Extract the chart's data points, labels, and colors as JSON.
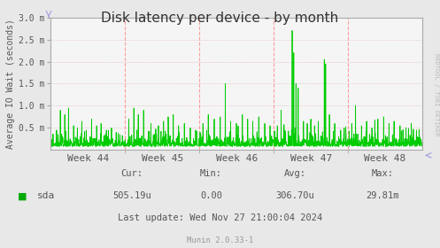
{
  "title": "Disk latency per device - by month",
  "ylabel": "Average IO Wait (seconds)",
  "background_color": "#e8e8e8",
  "plot_bg_color": "#f5f5f5",
  "grid_color_h": "#cccccc",
  "grid_color_v": "#ff8888",
  "line_color": "#00cc00",
  "ylim": [
    0,
    0.003
  ],
  "yticks": [
    0.0005,
    0.001,
    0.0015,
    0.002,
    0.0025,
    0.003
  ],
  "ytick_labels": [
    "0.5 m",
    "1.0 m",
    "1.5 m",
    "2.0 m",
    "2.5 m",
    "3.0 m"
  ],
  "week_labels": [
    "Week 44",
    "Week 45",
    "Week 46",
    "Week 47",
    "Week 48"
  ],
  "legend_label": "sda",
  "legend_color": "#00aa00",
  "cur_label": "Cur:",
  "cur_value": "505.19u",
  "min_label": "Min:",
  "min_value": "0.00",
  "avg_label": "Avg:",
  "avg_value": "306.70u",
  "max_label": "Max:",
  "max_value": "29.81m",
  "last_update": "Last update: Wed Nov 27 21:00:04 2024",
  "munin_version": "Munin 2.0.33-1",
  "rrdtool_label": "RRDTOOL / TOBI OETIKER",
  "title_color": "#333333",
  "text_color": "#555555",
  "label_color": "#999999",
  "arrow_color": "#aaaadd",
  "spine_color": "#aaaaaa"
}
